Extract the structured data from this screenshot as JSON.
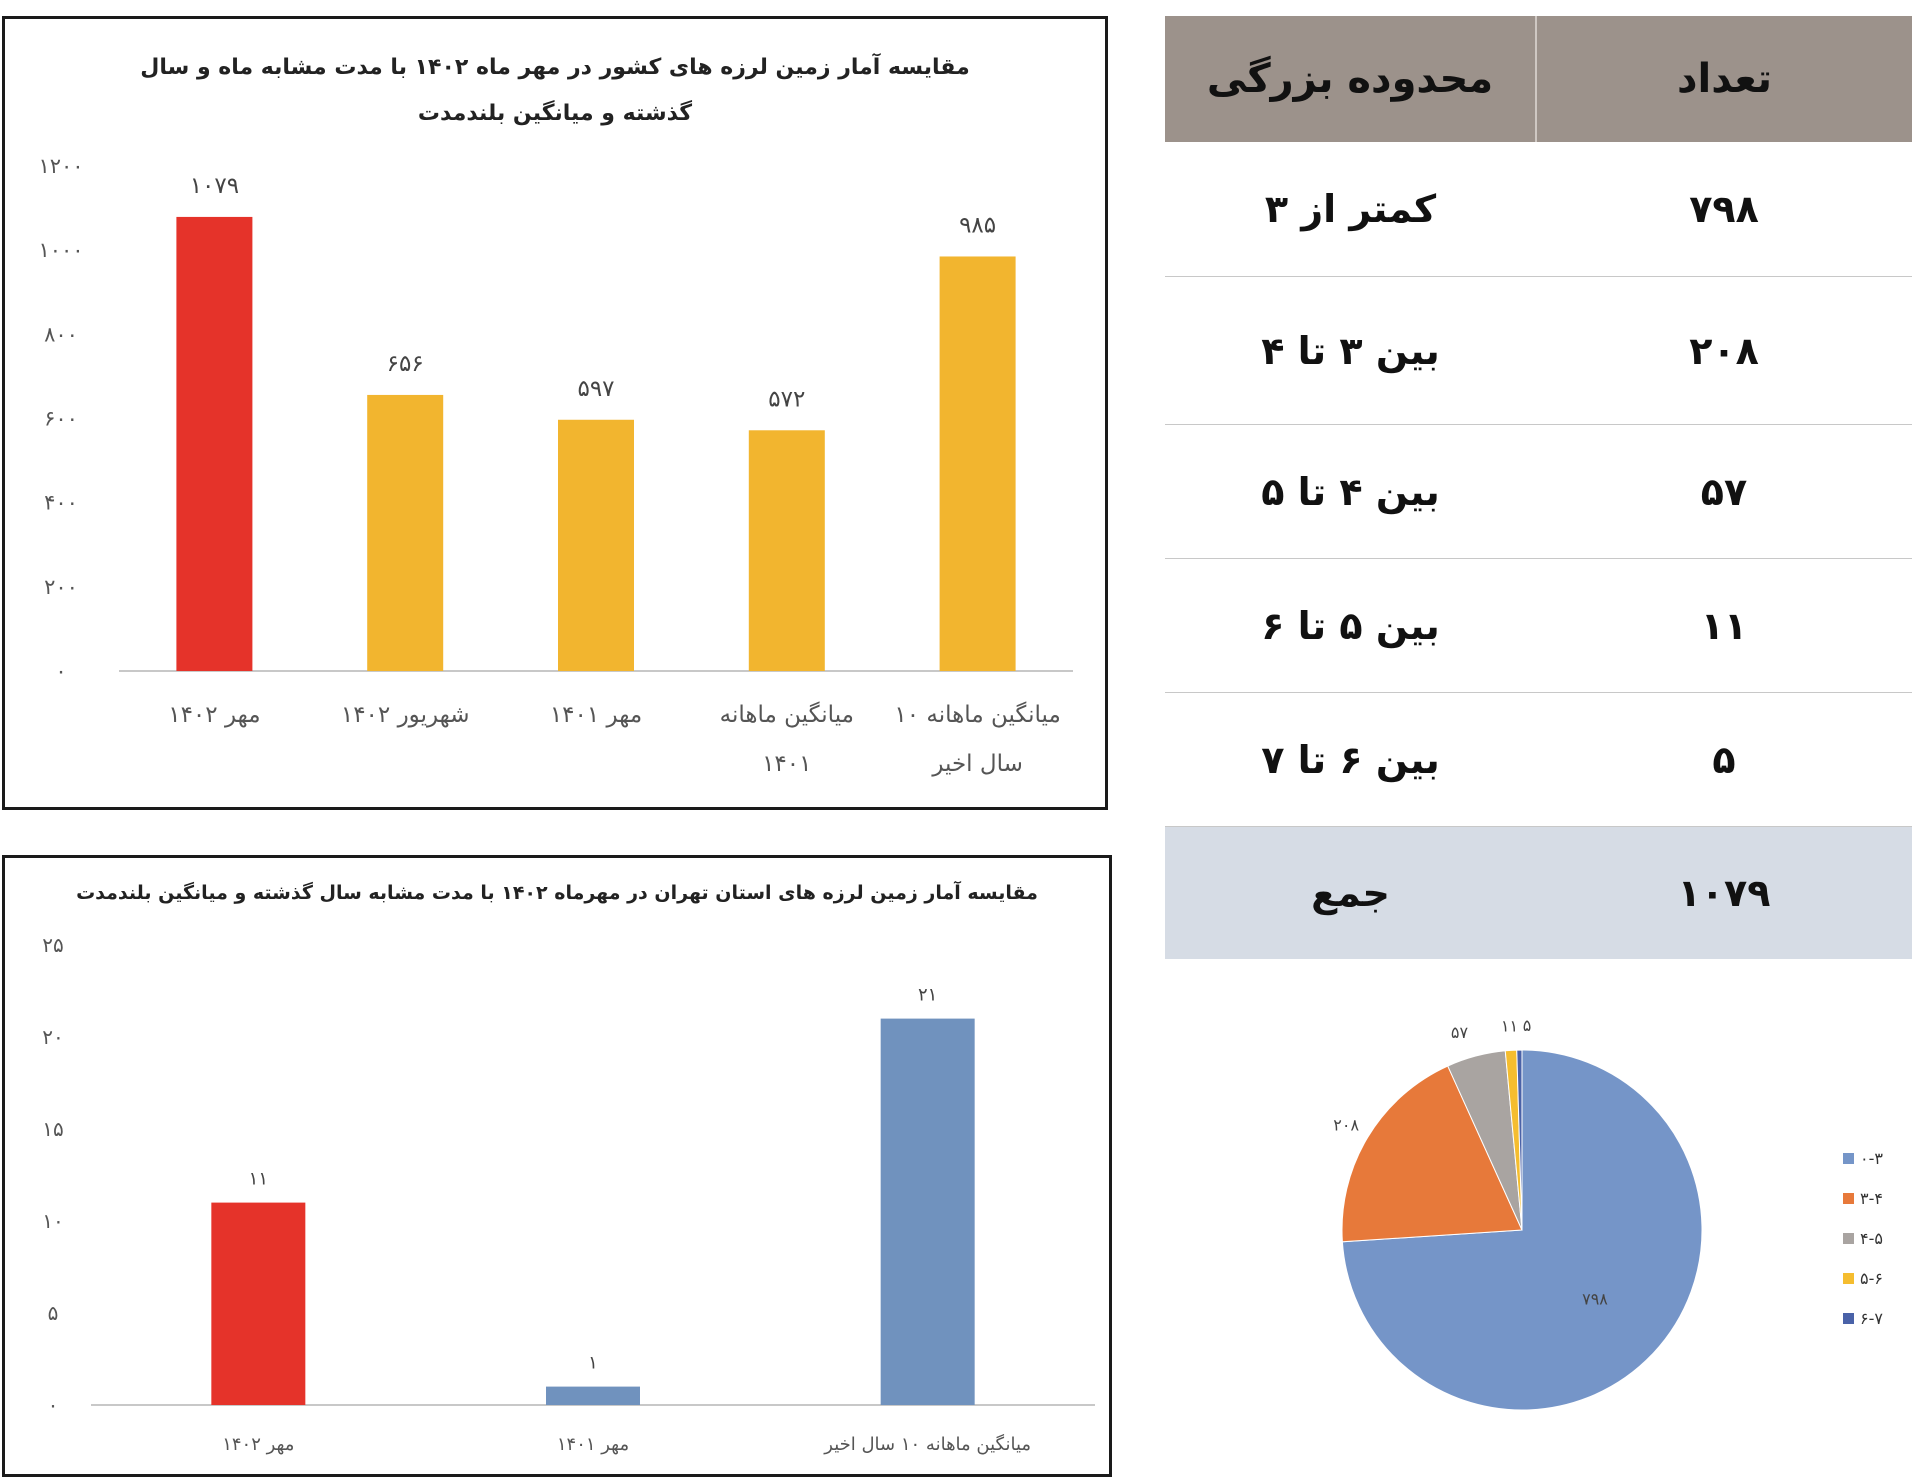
{
  "chart_data": [
    {
      "type": "bar",
      "title": "مقایسه آمار زمین لرزه های کشور در مهر ماه ۱۴۰۲ با مدت مشابه ماه و سال گذشته و میانگین بلندمدت",
      "categories": [
        [
          "مهر ۱۴۰۲"
        ],
        [
          "شهریور ۱۴۰۲"
        ],
        [
          "مهر ۱۴۰۱"
        ],
        [
          "میانگین ماهانه",
          "۱۴۰۱"
        ],
        [
          "میانگین ماهانه ۱۰",
          "سال اخیر"
        ]
      ],
      "values": [
        1079,
        656,
        597,
        572,
        985
      ],
      "value_labels": [
        "۱۰۷۹",
        "۶۵۶",
        "۵۹۷",
        "۵۷۲",
        "۹۸۵"
      ],
      "colors": [
        "#e5332a",
        "#f2b52f",
        "#f2b52f",
        "#f2b52f",
        "#f2b52f"
      ],
      "ylim": [
        0,
        1200
      ],
      "yticks": [
        0,
        200,
        400,
        600,
        800,
        1000,
        1200
      ],
      "ytick_labels": [
        "۰",
        "۲۰۰",
        "۴۰۰",
        "۶۰۰",
        "۸۰۰",
        "۱۰۰۰",
        "۱۲۰۰"
      ],
      "grid": false
    },
    {
      "type": "bar",
      "title": "مقایسه آمار زمین لرزه های استان تهران در مهرماه ۱۴۰۲ با مدت مشابه سال گذشته و میانگین بلندمدت",
      "categories": [
        [
          "مهر ۱۴۰۲"
        ],
        [
          "مهر ۱۴۰۱"
        ],
        [
          "میانگین ماهانه ۱۰ سال اخیر"
        ]
      ],
      "values": [
        11,
        1,
        21
      ],
      "value_labels": [
        "۱۱",
        "۱",
        "۲۱"
      ],
      "colors": [
        "#e5332a",
        "#7092be",
        "#7092be"
      ],
      "ylim": [
        0,
        25
      ],
      "yticks": [
        0,
        5,
        10,
        15,
        20,
        25
      ],
      "ytick_labels": [
        "۰",
        "۵",
        "۱۰",
        "۱۵",
        "۲۰",
        "۲۵"
      ],
      "grid": false
    },
    {
      "type": "pie",
      "categories": [
        "۰-۳",
        "۳-۴",
        "۴-۵",
        "۵-۶",
        "۶-۷"
      ],
      "values": [
        798,
        208,
        57,
        11,
        5
      ],
      "value_labels": [
        "۷۹۸",
        "۲۰۸",
        "۵۷",
        "۱۱",
        "۵"
      ],
      "colors": [
        "#7595c8",
        "#e7793a",
        "#a9a4a1",
        "#f5bd2f",
        "#4a62a8"
      ],
      "legend": "right"
    }
  ],
  "table": {
    "headers": {
      "count": "تعداد",
      "range": "محدوده بزرگی"
    },
    "rows": [
      {
        "count": "۷۹۸",
        "range": "کمتر از ۳"
      },
      {
        "count": "۲۰۸",
        "range": "بین ۳ تا ۴"
      },
      {
        "count": "۵۷",
        "range": "بین ۴ تا ۵"
      },
      {
        "count": "۱۱",
        "range": "بین ۵ تا ۶"
      },
      {
        "count": "۵",
        "range": "بین ۶ تا ۷"
      }
    ],
    "total": {
      "count": "۱۰۷۹",
      "label": "جمع"
    }
  }
}
